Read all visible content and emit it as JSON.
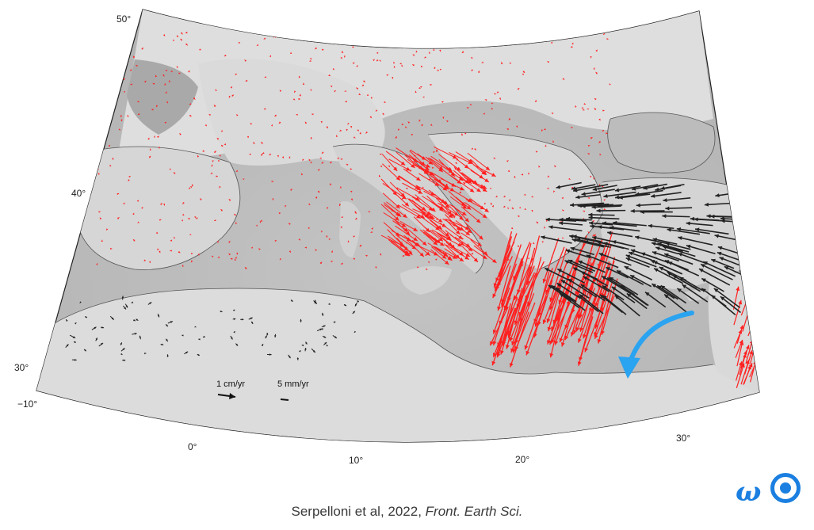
{
  "map": {
    "lat_labels": [
      "50°",
      "40°",
      "30°"
    ],
    "lon_labels": [
      "−10°",
      "0°",
      "10°",
      "20°",
      "30°"
    ],
    "legend": {
      "scale_large": "1 cm/yr",
      "scale_small": "5 mm/yr"
    },
    "colors": {
      "land": "#dcdcdc",
      "sea": "#c8c8c8",
      "deep_sea": "#b8b8b8",
      "gps_vectors_primary": "#ff2020",
      "gps_vectors_secondary": "#222222",
      "rotation_arrow": "#2aa3f0"
    }
  },
  "caption": {
    "authors": "Serpelloni et al, 2022,",
    "journal": "Front. Earth Sci."
  },
  "logo": {
    "symbol": "ω",
    "icon": "target-circle-icon"
  }
}
